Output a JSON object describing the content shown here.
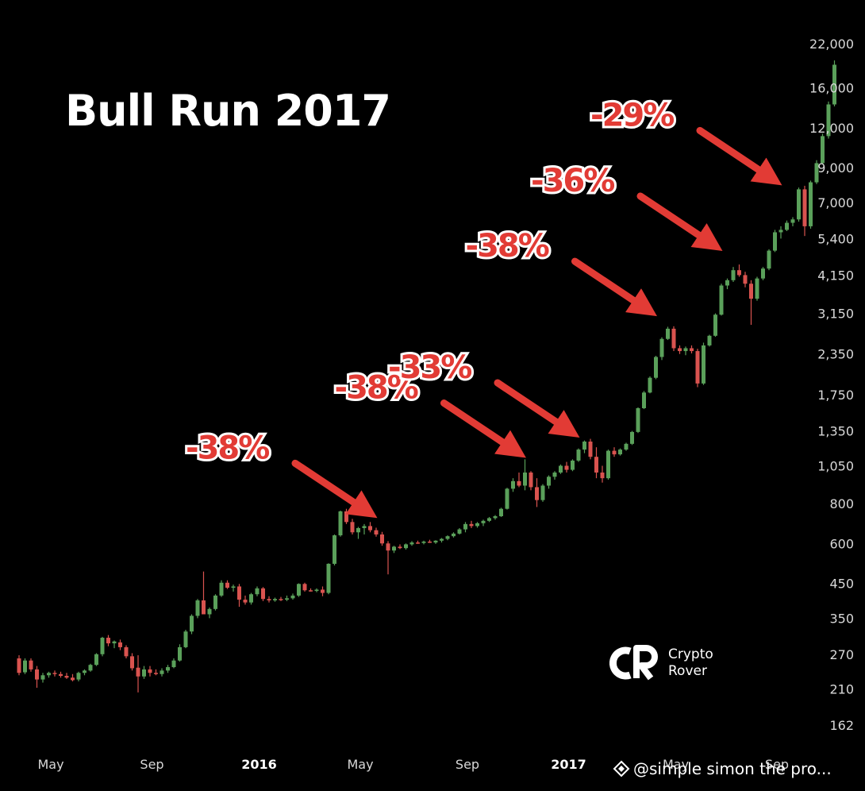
{
  "title": "Bull Run 2017",
  "logo": {
    "line1": "Crypto",
    "line2": "Rover"
  },
  "watermark": "@simple simon the pro...",
  "colors": {
    "up": "#5aa05a",
    "down": "#d9534f",
    "arrow": "#e23b35",
    "background": "#000000"
  },
  "chart_data": {
    "type": "candlestick",
    "title": "Bull Run 2017",
    "y_scale": "log",
    "ylim": [
      140,
      24000
    ],
    "y_ticks": [
      "22,000",
      "16,000",
      "12,000",
      "9,000",
      "7,000",
      "5,400",
      "4,150",
      "3,150",
      "2,350",
      "1,750",
      "1,350",
      "1,050",
      "800",
      "600",
      "450",
      "350",
      "270",
      "210",
      "162"
    ],
    "y_tick_values": [
      22000,
      16000,
      12000,
      9000,
      7000,
      5400,
      4150,
      3150,
      2350,
      1750,
      1350,
      1050,
      800,
      600,
      450,
      350,
      270,
      210,
      162
    ],
    "x_ticks": [
      {
        "label": "May",
        "week": 0,
        "bold": false
      },
      {
        "label": "Sep",
        "week": 17,
        "bold": false
      },
      {
        "label": "2016",
        "week": 35,
        "bold": true
      },
      {
        "label": "May",
        "week": 52,
        "bold": false
      },
      {
        "label": "Sep",
        "week": 70,
        "bold": false
      },
      {
        "label": "2017",
        "week": 87,
        "bold": true
      },
      {
        "label": "May",
        "week": 105,
        "bold": false
      },
      {
        "label": "Sep",
        "week": 122,
        "bold": false
      }
    ],
    "annotations": [
      {
        "label": "-38%",
        "week": 60,
        "value": 700
      },
      {
        "label": "-38%",
        "week": 85,
        "value": 1080
      },
      {
        "label": "-33%",
        "week": 94,
        "value": 1250
      },
      {
        "label": "-38%",
        "week": 107,
        "value": 3000
      },
      {
        "label": "-36%",
        "week": 118,
        "value": 4800
      },
      {
        "label": "-29%",
        "week": 128,
        "value": 7700
      }
    ],
    "candles": [
      [
        262,
        268,
        232,
        236
      ],
      [
        237,
        262,
        234,
        258
      ],
      [
        258,
        262,
        238,
        242
      ],
      [
        242,
        248,
        212,
        225
      ],
      [
        225,
        236,
        220,
        232
      ],
      [
        232,
        238,
        228,
        236
      ],
      [
        236,
        240,
        230,
        234
      ],
      [
        234,
        238,
        228,
        231
      ],
      [
        231,
        236,
        226,
        228
      ],
      [
        228,
        234,
        222,
        224
      ],
      [
        225,
        238,
        222,
        236
      ],
      [
        236,
        242,
        232,
        240
      ],
      [
        240,
        252,
        238,
        250
      ],
      [
        250,
        272,
        248,
        270
      ],
      [
        270,
        306,
        266,
        304
      ],
      [
        304,
        310,
        286,
        292
      ],
      [
        292,
        298,
        282,
        296
      ],
      [
        294,
        300,
        278,
        284
      ],
      [
        284,
        288,
        262,
        266
      ],
      [
        266,
        272,
        240,
        244
      ],
      [
        245,
        268,
        205,
        230
      ],
      [
        230,
        248,
        226,
        242
      ],
      [
        242,
        248,
        230,
        236
      ],
      [
        236,
        242,
        232,
        234
      ],
      [
        234,
        244,
        230,
        240
      ],
      [
        240,
        250,
        236,
        246
      ],
      [
        246,
        262,
        244,
        258
      ],
      [
        258,
        290,
        256,
        284
      ],
      [
        284,
        322,
        282,
        318
      ],
      [
        318,
        360,
        312,
        356
      ],
      [
        356,
        402,
        350,
        398
      ],
      [
        398,
        490,
        360,
        360
      ],
      [
        360,
        378,
        350,
        374
      ],
      [
        374,
        416,
        370,
        412
      ],
      [
        412,
        460,
        408,
        452
      ],
      [
        452,
        460,
        432,
        436
      ],
      [
        436,
        446,
        424,
        440
      ],
      [
        440,
        448,
        380,
        400
      ],
      [
        400,
        412,
        386,
        392
      ],
      [
        392,
        420,
        386,
        416
      ],
      [
        416,
        440,
        410,
        434
      ],
      [
        434,
        438,
        396,
        402
      ],
      [
        402,
        410,
        392,
        398
      ],
      [
        398,
        406,
        394,
        402
      ],
      [
        402,
        408,
        396,
        400
      ],
      [
        400,
        412,
        396,
        404
      ],
      [
        404,
        418,
        400,
        412
      ],
      [
        412,
        450,
        408,
        448
      ],
      [
        448,
        452,
        424,
        428
      ],
      [
        428,
        434,
        424,
        426
      ],
      [
        426,
        434,
        422,
        430
      ],
      [
        430,
        440,
        410,
        420
      ],
      [
        420,
        520,
        416,
        518
      ],
      [
        518,
        640,
        512,
        636
      ],
      [
        636,
        760,
        630,
        756
      ],
      [
        756,
        770,
        690,
        700
      ],
      [
        700,
        716,
        640,
        650
      ],
      [
        650,
        676,
        620,
        670
      ],
      [
        670,
        690,
        640,
        680
      ],
      [
        680,
        700,
        650,
        660
      ],
      [
        660,
        672,
        630,
        640
      ],
      [
        640,
        652,
        590,
        600
      ],
      [
        600,
        610,
        480,
        570
      ],
      [
        570,
        590,
        560,
        586
      ],
      [
        586,
        596,
        576,
        580
      ],
      [
        580,
        600,
        574,
        596
      ],
      [
        596,
        610,
        590,
        604
      ],
      [
        604,
        612,
        598,
        602
      ],
      [
        602,
        612,
        596,
        608
      ],
      [
        608,
        616,
        602,
        604
      ],
      [
        604,
        614,
        598,
        612
      ],
      [
        612,
        624,
        604,
        620
      ],
      [
        620,
        636,
        614,
        632
      ],
      [
        632,
        650,
        626,
        644
      ],
      [
        644,
        670,
        640,
        664
      ],
      [
        664,
        700,
        650,
        690
      ],
      [
        690,
        706,
        670,
        680
      ],
      [
        680,
        700,
        672,
        694
      ],
      [
        694,
        712,
        680,
        706
      ],
      [
        706,
        726,
        700,
        720
      ],
      [
        720,
        736,
        712,
        730
      ],
      [
        730,
        776,
        726,
        770
      ],
      [
        770,
        896,
        766,
        890
      ],
      [
        890,
        960,
        870,
        940
      ],
      [
        940,
        1000,
        900,
        910
      ],
      [
        910,
        1100,
        880,
        1000
      ],
      [
        1000,
        1010,
        880,
        900
      ],
      [
        900,
        960,
        780,
        820
      ],
      [
        820,
        920,
        810,
        910
      ],
      [
        910,
        980,
        890,
        970
      ],
      [
        970,
        1010,
        950,
        1000
      ],
      [
        1000,
        1060,
        990,
        1050
      ],
      [
        1050,
        1080,
        1000,
        1020
      ],
      [
        1020,
        1100,
        1010,
        1090
      ],
      [
        1090,
        1190,
        1080,
        1180
      ],
      [
        1180,
        1260,
        1150,
        1250
      ],
      [
        1250,
        1275,
        1100,
        1120
      ],
      [
        1120,
        1200,
        960,
        1000
      ],
      [
        1000,
        1050,
        930,
        960
      ],
      [
        960,
        1180,
        950,
        1170
      ],
      [
        1170,
        1200,
        1120,
        1140
      ],
      [
        1140,
        1190,
        1130,
        1180
      ],
      [
        1180,
        1240,
        1170,
        1230
      ],
      [
        1230,
        1350,
        1220,
        1340
      ],
      [
        1340,
        1600,
        1330,
        1590
      ],
      [
        1590,
        1800,
        1580,
        1780
      ],
      [
        1780,
        2000,
        1770,
        1980
      ],
      [
        1980,
        2320,
        1960,
        2300
      ],
      [
        2300,
        2650,
        2250,
        2620
      ],
      [
        2620,
        2860,
        2600,
        2820
      ],
      [
        2820,
        2870,
        2400,
        2450
      ],
      [
        2450,
        2500,
        2350,
        2400
      ],
      [
        2400,
        2480,
        2330,
        2450
      ],
      [
        2450,
        2500,
        2360,
        2400
      ],
      [
        2400,
        2440,
        1850,
        1900
      ],
      [
        1900,
        2550,
        1880,
        2500
      ],
      [
        2500,
        2700,
        2480,
        2680
      ],
      [
        2680,
        3150,
        2660,
        3120
      ],
      [
        3120,
        3900,
        3100,
        3850
      ],
      [
        3850,
        4050,
        3750,
        4000
      ],
      [
        4000,
        4400,
        3950,
        4300
      ],
      [
        4300,
        4480,
        4100,
        4150
      ],
      [
        4150,
        4250,
        3800,
        3900
      ],
      [
        3900,
        4000,
        2900,
        3500
      ],
      [
        3500,
        4100,
        3450,
        4050
      ],
      [
        4050,
        4400,
        4000,
        4350
      ],
      [
        4350,
        5000,
        4300,
        4950
      ],
      [
        4950,
        5750,
        4900,
        5650
      ],
      [
        5650,
        5900,
        5400,
        5750
      ],
      [
        5750,
        6150,
        5700,
        6050
      ],
      [
        6050,
        6300,
        5900,
        6200
      ],
      [
        6200,
        7800,
        6100,
        7700
      ],
      [
        7700,
        7900,
        5500,
        5900
      ],
      [
        5900,
        8200,
        5800,
        8100
      ],
      [
        8100,
        9500,
        8000,
        9300
      ],
      [
        9300,
        11500,
        9200,
        11300
      ],
      [
        11300,
        14500,
        11100,
        14200
      ],
      [
        14200,
        19500,
        14000,
        18900
      ]
    ]
  }
}
